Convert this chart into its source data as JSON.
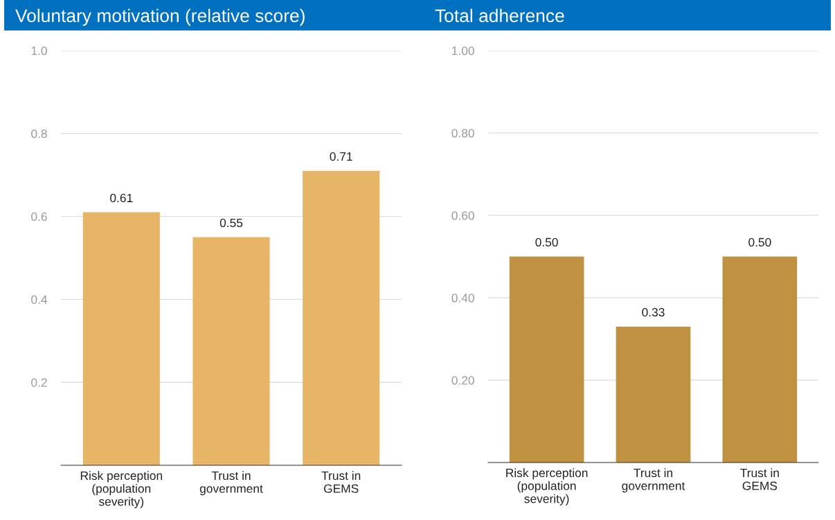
{
  "chart_data": [
    {
      "type": "bar",
      "title": "Voluntary motivation (relative score)",
      "categories": [
        "Risk perception\n(population\nseverity)",
        "Trust in\ngovernment",
        "Trust in\nGEMS"
      ],
      "values": [
        0.61,
        0.55,
        0.71
      ],
      "color": "#e6b566",
      "ylim": [
        0,
        1
      ],
      "yticks": [
        {
          "value": 0,
          "label": null
        },
        0.2,
        0.4,
        0.6,
        0.8,
        {
          "value": 1,
          "label": "1.0"
        }
      ],
      "grid": "y",
      "data_labels": true,
      "legend": false
    },
    {
      "type": "bar",
      "title": "Total adherence",
      "categories": [
        "Risk perception\n(population\nseverity)",
        "Trust in\ngovernment",
        "Trust in\nGEMS"
      ],
      "values": [
        0.5,
        0.33,
        0.5
      ],
      "value_labels": [
        "0.50",
        "0.33",
        "0.50"
      ],
      "color": "#c09140",
      "ylim": [
        0,
        1
      ],
      "yticks": [
        {
          "value": 0,
          "label": null
        },
        {
          "value": 0.2,
          "label": "0.20"
        },
        {
          "value": 0.4,
          "label": "0.40"
        },
        {
          "value": 0.6,
          "label": "0.60"
        },
        {
          "value": 0.8,
          "label": "0.80"
        },
        {
          "value": 1.0,
          "label": "1.00"
        }
      ],
      "grid": "y",
      "legend": false
    }
  ]
}
